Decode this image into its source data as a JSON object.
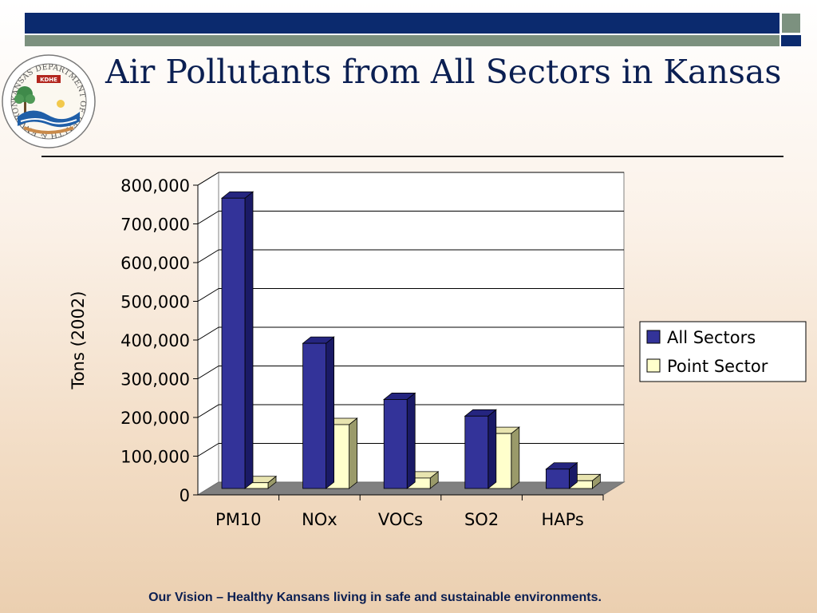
{
  "slide": {
    "title": "Air Pollutants from All Sectors in Kansas",
    "footer": "Our Vision – Healthy Kansans living in safe and sustainable environments."
  },
  "logo": {
    "text": "KANSAS DEPARTMENT OF HEALTH & ENVIRONMENT",
    "badge": "KDHE"
  },
  "colors": {
    "navy": "#0b2a6e",
    "gray_green": "#7c917f",
    "series_all": "#333399",
    "series_point": "#ffffcc"
  },
  "chart_data": {
    "type": "bar",
    "categories": [
      "PM10",
      "NOx",
      "VOCs",
      "SO2",
      "HAPs"
    ],
    "series": [
      {
        "name": "All Sectors",
        "values": [
          750000,
          375000,
          230000,
          187000,
          50000
        ]
      },
      {
        "name": "Point Sector",
        "values": [
          15000,
          165000,
          27000,
          142000,
          20000
        ]
      }
    ],
    "title": "",
    "xlabel": "",
    "ylabel": "Tons (2002)",
    "ylim": [
      0,
      800000
    ],
    "yticks": [
      0,
      100000,
      200000,
      300000,
      400000,
      500000,
      600000,
      700000,
      800000
    ],
    "ytick_labels": [
      "0",
      "100,000",
      "200,000",
      "300,000",
      "400,000",
      "500,000",
      "600,000",
      "700,000",
      "800,000"
    ],
    "grid": true,
    "legend_position": "right",
    "style": "3d-clustered-column"
  }
}
